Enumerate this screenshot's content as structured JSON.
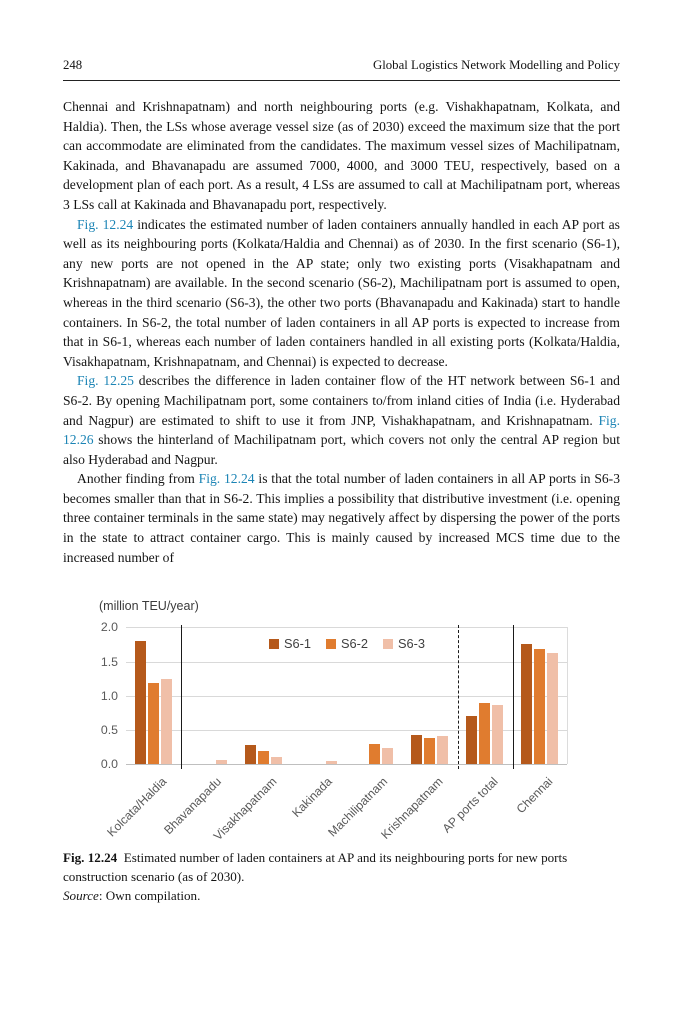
{
  "colors": {
    "figure_ref_blue": "#1b84b5",
    "bar_s6_1": "#B5591B",
    "bar_s6_2": "#E07C2F",
    "bar_s6_3": "#F0BFA8"
  },
  "header": {
    "page_number": "248",
    "running_title": "Global Logistics Network Modelling and Policy"
  },
  "article": {
    "paragraphs": [
      {
        "indent": false,
        "segments": [
          {
            "t": "Chennai and Krishnapatnam) and north neighbouring ports (e.g. Vishakhapatnam, Kolkata, and Haldia). Then, the LSs whose average vessel size (as of 2030) exceed the maximum size that the port can accommodate are eliminated from the candidates. The maximum vessel sizes of Machilipatnam, Kakinada, and Bhavanapadu are assumed 7000, 4000, and 3000 TEU, respectively, based on a development plan of each port. As a result, 4 LSs are assumed to call at Machilipatnam port, whereas 3 LSs call at Kakinada and Bhavanapadu port, respectively."
          }
        ]
      },
      {
        "indent": true,
        "segments": [
          {
            "t": "Fig. 12.24",
            "ref": true
          },
          {
            "t": " indicates the estimated number of laden containers annually handled in each AP port as well as its neighbouring ports (Kolkata/Haldia and Chennai) as of 2030. In the first scenario (S6-1), any new ports are not opened in the AP state; only two existing ports (Visakhapatnam and Krishnapatnam) are available. In the second scenario (S6-2), Machilipatnam port is assumed to open, whereas in the third scenario (S6-3), the other two ports (Bhavanapadu and Kakinada) start to handle containers. In S6-2, the total number of laden containers in all AP ports is expected to increase from that in S6-1, whereas each number of laden containers handled in all existing ports (Kolkata/Haldia, Visakhapatnam, Krishnapatnam, and Chennai) is expected to decrease."
          }
        ]
      },
      {
        "indent": true,
        "segments": [
          {
            "t": "Fig. 12.25",
            "ref": true
          },
          {
            "t": " describes the difference in laden container flow of the HT network between S6-1 and S6-2. By opening Machilipatnam port, some containers to/from inland cities of India (i.e. Hyderabad and Nagpur) are estimated to shift to use it from JNP, Vishakhapatnam, and Krishnapatnam. "
          },
          {
            "t": "Fig. 12.26",
            "ref": true
          },
          {
            "t": " shows the hinterland of Machilipatnam port, which covers not only the central AP region but also Hyderabad and Nagpur."
          }
        ]
      },
      {
        "indent": true,
        "segments": [
          {
            "t": "Another finding from "
          },
          {
            "t": "Fig. 12.24",
            "ref": true
          },
          {
            "t": " is that the total number of laden containers in all AP ports in S6-3 becomes smaller than that in S6-2. This implies a possibility that distributive investment (i.e. opening three container terminals in the same state) may negatively affect by dispersing the power of the ports in the state to attract container cargo. This is mainly caused by increased MCS time due to the increased number of"
          }
        ]
      }
    ]
  },
  "chart_data": {
    "type": "bar",
    "title": "(million TEU/year)",
    "categories": [
      "Kolcata/Haldia",
      "Bhavanapadu",
      "Visakhapatnam",
      "Kakinada",
      "Machilipatnam",
      "Krishnapatnam",
      "AP ports total",
      "Chennai"
    ],
    "series": [
      {
        "name": "S6-1",
        "color": "#B5591B",
        "values": [
          1.8,
          0,
          0.28,
          0,
          0,
          0.42,
          0.7,
          1.75
        ]
      },
      {
        "name": "S6-2",
        "color": "#E07C2F",
        "values": [
          1.18,
          0,
          0.2,
          0,
          0.3,
          0.39,
          0.89,
          1.69
        ]
      },
      {
        "name": "S6-3",
        "color": "#F0BFA8",
        "values": [
          1.25,
          0.06,
          0.11,
          0.05,
          0.24,
          0.41,
          0.87,
          1.63
        ]
      }
    ],
    "ylim": [
      0,
      2.0
    ],
    "yticks": [
      0.0,
      0.5,
      1.0,
      1.5,
      2.0
    ],
    "ytick_labels": [
      "0.0",
      "0.5",
      "1.0",
      "1.5",
      "2.0"
    ],
    "grid": true,
    "legend_position": "top-center",
    "separators": [
      {
        "after_category_index": 0,
        "style": "solid"
      },
      {
        "after_category_index": 5,
        "style": "dashed"
      },
      {
        "after_category_index": 6,
        "style": "solid"
      }
    ]
  },
  "figure": {
    "caption_label": "Fig. 12.24",
    "caption_text": "Estimated number of laden containers at AP and its neighbouring ports for new ports construction scenario (as of 2030).",
    "source_label": "Source",
    "source_text": ": Own compilation."
  }
}
